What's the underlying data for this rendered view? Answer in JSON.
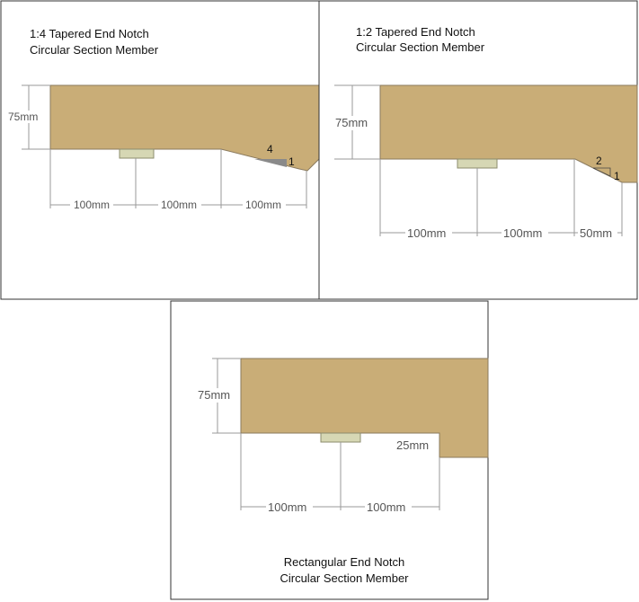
{
  "colors": {
    "timber": "#c9ad77",
    "timber_edge": "#8a7a5e",
    "bearing": "#d6d7b4",
    "bearing_edge": "#8c8c6e",
    "dim_line": "#9a9a9a",
    "dim_text": "#555555",
    "frame": "#333333",
    "ratio_triangle": "#8a8a8a"
  },
  "panels": [
    {
      "id": "quarter-taper",
      "title_line1": "1:4 Tapered End Notch",
      "title_line2": "Circular Section Member",
      "depth_label": "75mm",
      "spans": [
        "100mm",
        "100mm",
        "100mm"
      ],
      "ratio_run": "4",
      "ratio_rise": "1"
    },
    {
      "id": "half-taper",
      "title_line1": "1:2 Tapered End Notch",
      "title_line2": "Circular Section Member",
      "depth_label": "75mm",
      "spans": [
        "100mm",
        "100mm",
        "50mm"
      ],
      "ratio_run": "2",
      "ratio_rise": "1"
    },
    {
      "id": "rectangular",
      "title_line1": "Rectangular End Notch",
      "title_line2": "Circular Section Member",
      "depth_label": "75mm",
      "notch_label": "25mm",
      "spans": [
        "100mm",
        "100mm"
      ]
    }
  ]
}
